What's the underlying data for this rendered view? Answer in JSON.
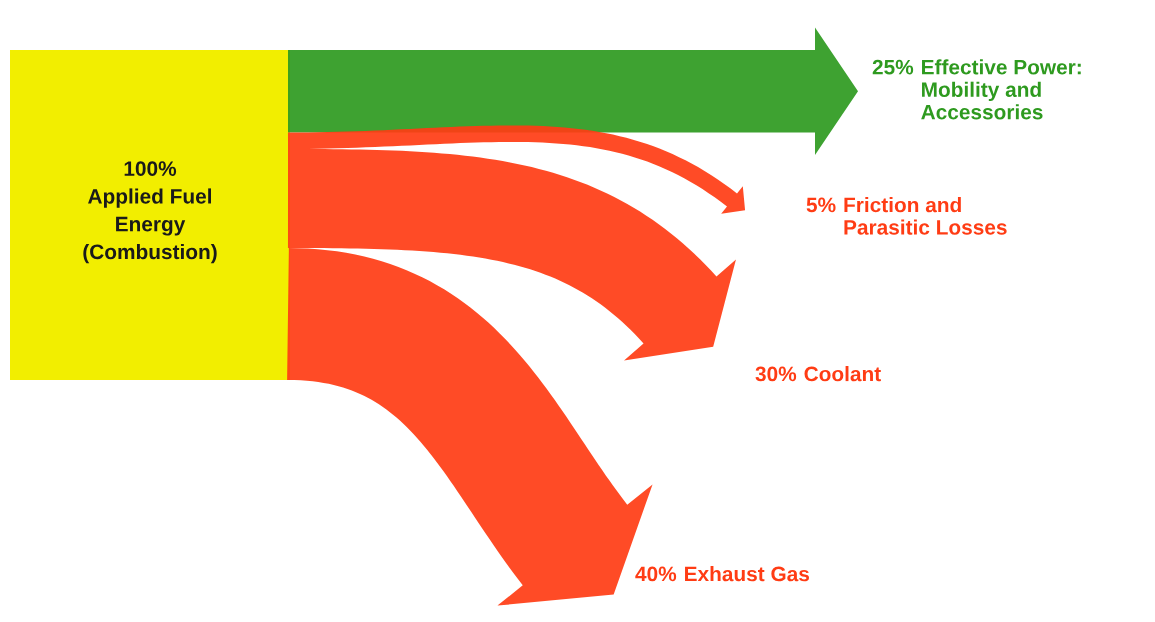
{
  "chart_data": {
    "type": "other",
    "categories": [
      "Effective Power:\nMobility and\nAccessories",
      "Friction and\nParasitic Losses",
      "Coolant",
      "Exhaust Gas"
    ],
    "values": [
      25,
      5,
      30,
      40
    ],
    "value_labels": [
      "25%",
      "5%",
      "30%",
      "40%"
    ],
    "colors": [
      "#2e9a1f",
      "#ff3c14",
      "#ff3c14",
      "#ff3c14"
    ],
    "annotations": [
      "100%\nApplied Fuel\nEnergy\n(Combustion)"
    ]
  }
}
